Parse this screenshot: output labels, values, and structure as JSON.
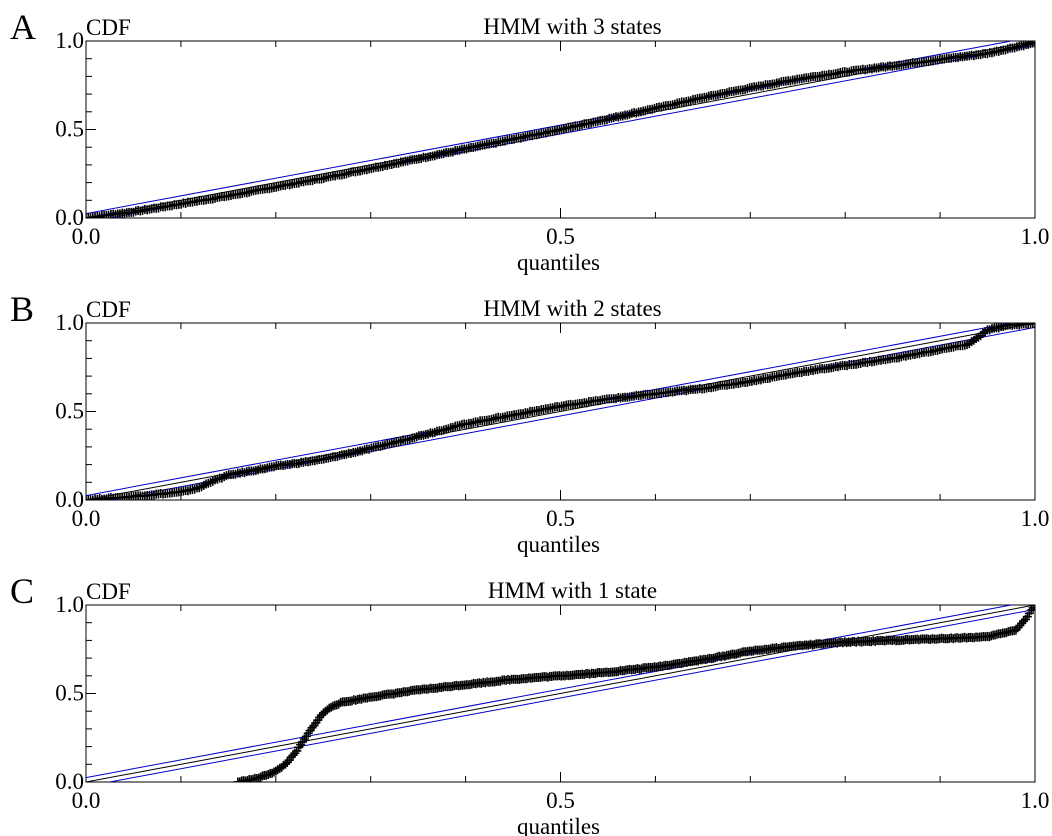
{
  "chart_data": [
    {
      "type": "scatter",
      "panel_label": "A",
      "title": "HMM with 3 states",
      "ylabel": "CDF",
      "xlabel": "quantiles",
      "xlim": [
        0,
        1
      ],
      "ylim": [
        0,
        1
      ],
      "x_ticks": [
        "0.0",
        "0.5",
        "1.0"
      ],
      "y_ticks": [
        "0.0",
        "0.5",
        "1.0"
      ],
      "grid": false,
      "series": [
        {
          "marker": "+",
          "color": "#000000",
          "x": [
            0.0,
            0.05,
            0.1,
            0.15,
            0.2,
            0.25,
            0.3,
            0.35,
            0.4,
            0.45,
            0.5,
            0.55,
            0.6,
            0.65,
            0.7,
            0.75,
            0.8,
            0.85,
            0.9,
            0.95,
            1.0
          ],
          "y": [
            0.0,
            0.035,
            0.08,
            0.125,
            0.175,
            0.225,
            0.28,
            0.335,
            0.39,
            0.445,
            0.5,
            0.56,
            0.62,
            0.68,
            0.735,
            0.785,
            0.825,
            0.86,
            0.895,
            0.93,
            0.99
          ]
        }
      ],
      "reference_lines": [
        {
          "color": "#000000",
          "x": [
            0,
            1
          ],
          "y": [
            0,
            1
          ]
        },
        {
          "color": "#0000cc",
          "x": [
            0,
            1
          ],
          "y": [
            0.025,
            1.025
          ]
        },
        {
          "color": "#0000cc",
          "x": [
            0,
            1
          ],
          "y": [
            -0.025,
            0.975
          ]
        }
      ]
    },
    {
      "type": "scatter",
      "panel_label": "B",
      "title": "HMM with 2 states",
      "ylabel": "CDF",
      "xlabel": "quantiles",
      "xlim": [
        0,
        1
      ],
      "ylim": [
        0,
        1
      ],
      "x_ticks": [
        "0.0",
        "0.5",
        "1.0"
      ],
      "y_ticks": [
        "0.0",
        "0.5",
        "1.0"
      ],
      "grid": false,
      "series": [
        {
          "marker": "+",
          "color": "#000000",
          "x": [
            0.0,
            0.05,
            0.1,
            0.12,
            0.13,
            0.15,
            0.2,
            0.25,
            0.3,
            0.35,
            0.4,
            0.45,
            0.5,
            0.55,
            0.6,
            0.65,
            0.7,
            0.75,
            0.8,
            0.85,
            0.9,
            0.93,
            0.95,
            0.97,
            1.0
          ],
          "y": [
            0.0,
            0.02,
            0.045,
            0.07,
            0.1,
            0.14,
            0.19,
            0.23,
            0.29,
            0.36,
            0.43,
            0.48,
            0.53,
            0.57,
            0.6,
            0.63,
            0.67,
            0.72,
            0.76,
            0.8,
            0.85,
            0.88,
            0.96,
            0.985,
            1.0
          ]
        }
      ],
      "reference_lines": [
        {
          "color": "#000000",
          "x": [
            0,
            1
          ],
          "y": [
            0,
            1
          ]
        },
        {
          "color": "#0000cc",
          "x": [
            0,
            1
          ],
          "y": [
            0.025,
            1.025
          ]
        },
        {
          "color": "#0000cc",
          "x": [
            0,
            1
          ],
          "y": [
            -0.025,
            0.975
          ]
        }
      ]
    },
    {
      "type": "scatter",
      "panel_label": "C",
      "title": "HMM with 1 state",
      "ylabel": "CDF",
      "xlabel": "quantiles",
      "xlim": [
        0,
        1
      ],
      "ylim": [
        0,
        1
      ],
      "x_ticks": [
        "0.0",
        "0.5",
        "1.0"
      ],
      "y_ticks": [
        "0.0",
        "0.5",
        "1.0"
      ],
      "grid": false,
      "series": [
        {
          "marker": "+",
          "color": "#000000",
          "x": [
            0.16,
            0.18,
            0.2,
            0.21,
            0.22,
            0.23,
            0.24,
            0.25,
            0.26,
            0.27,
            0.28,
            0.3,
            0.35,
            0.4,
            0.45,
            0.5,
            0.55,
            0.6,
            0.65,
            0.7,
            0.75,
            0.8,
            0.85,
            0.9,
            0.95,
            0.98,
            0.99,
            1.0
          ],
          "y": [
            0.0,
            0.02,
            0.06,
            0.1,
            0.16,
            0.24,
            0.32,
            0.39,
            0.43,
            0.45,
            0.46,
            0.48,
            0.52,
            0.55,
            0.58,
            0.6,
            0.62,
            0.65,
            0.69,
            0.74,
            0.77,
            0.79,
            0.8,
            0.81,
            0.82,
            0.86,
            0.92,
            1.0
          ]
        }
      ],
      "reference_lines": [
        {
          "color": "#000000",
          "x": [
            0,
            1
          ],
          "y": [
            0,
            1
          ]
        },
        {
          "color": "#0000cc",
          "x": [
            0,
            1
          ],
          "y": [
            0.025,
            1.025
          ]
        },
        {
          "color": "#0000cc",
          "x": [
            0,
            1
          ],
          "y": [
            -0.025,
            0.975
          ]
        }
      ]
    }
  ]
}
